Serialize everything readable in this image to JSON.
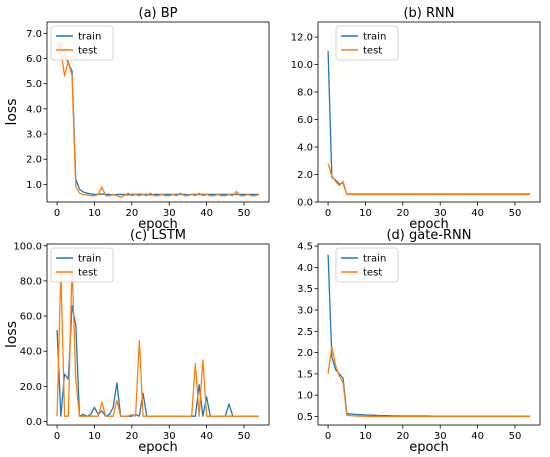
{
  "chart_data": [
    {
      "type": "line",
      "title": "(a)  BP",
      "xlabel": "epoch",
      "ylabel": "loss",
      "xlim": [
        -2.7,
        56.7
      ],
      "ylim": [
        0.3,
        7.45
      ],
      "xticks": [
        0,
        10,
        20,
        30,
        40,
        50
      ],
      "yticks": [
        1.0,
        2.0,
        3.0,
        4.0,
        5.0,
        6.0,
        7.0
      ],
      "ytick_labels": [
        "1.0",
        "2.0",
        "3.0",
        "4.0",
        "5.0",
        "6.0",
        "7.0"
      ],
      "legend": "top-left",
      "series": [
        {
          "name": "train",
          "color": "#1f77b4",
          "values": [
            6.4,
            6.6,
            6.2,
            5.8,
            5.5,
            1.2,
            0.8,
            0.7,
            0.65,
            0.62,
            0.6,
            0.6,
            0.62,
            0.6,
            0.6,
            0.58,
            0.6,
            0.6,
            0.6,
            0.58,
            0.6,
            0.6,
            0.6,
            0.6,
            0.6,
            0.58,
            0.6,
            0.6,
            0.6,
            0.6,
            0.6,
            0.6,
            0.6,
            0.6,
            0.6,
            0.58,
            0.6,
            0.6,
            0.6,
            0.6,
            0.6,
            0.6,
            0.6,
            0.6,
            0.6,
            0.6,
            0.6,
            0.6,
            0.6,
            0.6,
            0.6,
            0.6,
            0.6,
            0.6,
            0.6
          ]
        },
        {
          "name": "test",
          "color": "#ff7f0e",
          "values": [
            6.7,
            6.4,
            5.3,
            5.9,
            5.3,
            0.9,
            0.65,
            0.6,
            0.58,
            0.55,
            0.55,
            0.6,
            0.9,
            0.55,
            0.55,
            0.6,
            0.55,
            0.5,
            0.55,
            0.65,
            0.55,
            0.6,
            0.55,
            0.6,
            0.55,
            0.65,
            0.55,
            0.55,
            0.6,
            0.55,
            0.55,
            0.6,
            0.55,
            0.65,
            0.55,
            0.55,
            0.6,
            0.55,
            0.65,
            0.55,
            0.6,
            0.55,
            0.55,
            0.6,
            0.55,
            0.55,
            0.6,
            0.55,
            0.72,
            0.55,
            0.55,
            0.6,
            0.55,
            0.55,
            0.6
          ]
        }
      ]
    },
    {
      "type": "line",
      "title": "(b)  RNN",
      "xlabel": "epoch",
      "ylabel": "",
      "xlim": [
        -2.7,
        56.7
      ],
      "ylim": [
        0.0,
        13.1
      ],
      "xticks": [
        0,
        10,
        20,
        30,
        40,
        50
      ],
      "yticks": [
        0.0,
        2.0,
        4.0,
        6.0,
        8.0,
        10.0,
        12.0
      ],
      "ytick_labels": [
        "0.0",
        "2.0",
        "4.0",
        "6.0",
        "8.0",
        "10.0",
        "12.0"
      ],
      "legend": "top-center",
      "series": [
        {
          "name": "train",
          "color": "#1f77b4",
          "values": [
            11.0,
            1.8,
            1.6,
            1.3,
            1.4,
            0.58,
            0.58,
            0.58,
            0.58,
            0.58,
            0.58,
            0.58,
            0.58,
            0.58,
            0.58,
            0.58,
            0.58,
            0.58,
            0.58,
            0.58,
            0.58,
            0.58,
            0.58,
            0.58,
            0.58,
            0.58,
            0.58,
            0.58,
            0.58,
            0.58,
            0.58,
            0.58,
            0.58,
            0.58,
            0.58,
            0.58,
            0.58,
            0.58,
            0.58,
            0.58,
            0.58,
            0.58,
            0.58,
            0.58,
            0.58,
            0.58,
            0.58,
            0.58,
            0.58,
            0.58,
            0.58,
            0.58,
            0.58,
            0.58,
            0.58
          ]
        },
        {
          "name": "test",
          "color": "#ff7f0e",
          "values": [
            2.8,
            1.9,
            1.5,
            1.2,
            1.5,
            0.55,
            0.55,
            0.55,
            0.55,
            0.55,
            0.55,
            0.55,
            0.55,
            0.55,
            0.55,
            0.55,
            0.55,
            0.55,
            0.55,
            0.55,
            0.55,
            0.55,
            0.55,
            0.55,
            0.55,
            0.55,
            0.55,
            0.55,
            0.55,
            0.55,
            0.55,
            0.55,
            0.55,
            0.55,
            0.55,
            0.55,
            0.55,
            0.55,
            0.55,
            0.55,
            0.55,
            0.55,
            0.55,
            0.55,
            0.55,
            0.55,
            0.55,
            0.55,
            0.55,
            0.55,
            0.55,
            0.55,
            0.55,
            0.55,
            0.55
          ]
        }
      ]
    },
    {
      "type": "line",
      "title": "(c)  LSTM",
      "xlabel": "epoch",
      "ylabel": "loss",
      "xlim": [
        -2.7,
        56.7
      ],
      "ylim": [
        -2.0,
        101.0
      ],
      "xticks": [
        0,
        10,
        20,
        30,
        40,
        50
      ],
      "yticks": [
        0.0,
        20.0,
        40.0,
        60.0,
        80.0,
        100.0
      ],
      "ytick_labels": [
        "0.0",
        "20.0",
        "40.0",
        "60.0",
        "80.0",
        "100.0"
      ],
      "legend": "top-left",
      "series": [
        {
          "name": "train",
          "color": "#1f77b4",
          "values": [
            52,
            3,
            27,
            24,
            66,
            55,
            3,
            4,
            3,
            4,
            8,
            4,
            6,
            3,
            4,
            8,
            22,
            3,
            3,
            3,
            3,
            4,
            3,
            16,
            3,
            3,
            3,
            3,
            3,
            3,
            3,
            3,
            3,
            3,
            3,
            3,
            3,
            3,
            21,
            3,
            14,
            3,
            3,
            3,
            3,
            3,
            10,
            3,
            3,
            3,
            3,
            3,
            3,
            3,
            3
          ]
        },
        {
          "name": "test",
          "color": "#ff7f0e",
          "values": [
            3,
            86,
            3,
            3,
            89,
            24,
            3,
            3,
            3,
            3,
            3,
            3,
            11,
            3,
            3,
            3,
            12,
            3,
            3,
            3,
            4,
            3,
            46,
            3,
            3,
            3,
            3,
            3,
            3,
            3,
            3,
            3,
            3,
            3,
            3,
            3,
            3,
            33,
            3,
            35,
            3,
            3,
            3,
            3,
            3,
            3,
            3,
            3,
            3,
            3,
            3,
            3,
            3,
            3,
            3
          ]
        }
      ]
    },
    {
      "type": "line",
      "title": "(d)  gate-RNN",
      "xlabel": "epoch",
      "ylabel": "",
      "xlim": [
        -2.7,
        56.7
      ],
      "ylim": [
        0.3,
        4.55
      ],
      "xticks": [
        0,
        10,
        20,
        30,
        40,
        50
      ],
      "yticks": [
        0.5,
        1.0,
        1.5,
        2.0,
        2.5,
        3.0,
        3.5,
        4.0,
        4.5
      ],
      "ytick_labels": [
        "0.5",
        "1.0",
        "1.5",
        "2.0",
        "2.5",
        "3.0",
        "3.5",
        "4.0",
        "4.5"
      ],
      "legend": "top-center",
      "series": [
        {
          "name": "train",
          "color": "#1f77b4",
          "values": [
            4.3,
            1.9,
            1.6,
            1.5,
            1.4,
            0.57,
            0.56,
            0.55,
            0.545,
            0.54,
            0.535,
            0.53,
            0.53,
            0.525,
            0.52,
            0.52,
            0.52,
            0.515,
            0.515,
            0.515,
            0.51,
            0.51,
            0.51,
            0.51,
            0.51,
            0.51,
            0.51,
            0.51,
            0.505,
            0.505,
            0.505,
            0.505,
            0.505,
            0.505,
            0.505,
            0.505,
            0.505,
            0.505,
            0.505,
            0.505,
            0.505,
            0.505,
            0.505,
            0.505,
            0.505,
            0.505,
            0.505,
            0.505,
            0.505,
            0.505,
            0.505,
            0.505,
            0.505,
            0.505,
            0.505
          ]
        },
        {
          "name": "test",
          "color": "#ff7f0e",
          "values": [
            1.5,
            2.15,
            1.7,
            1.45,
            1.3,
            0.53,
            0.52,
            0.515,
            0.51,
            0.505,
            0.505,
            0.5,
            0.5,
            0.5,
            0.5,
            0.5,
            0.5,
            0.5,
            0.5,
            0.5,
            0.5,
            0.5,
            0.5,
            0.5,
            0.5,
            0.5,
            0.5,
            0.5,
            0.5,
            0.5,
            0.5,
            0.5,
            0.5,
            0.5,
            0.5,
            0.5,
            0.5,
            0.5,
            0.5,
            0.5,
            0.5,
            0.5,
            0.5,
            0.5,
            0.5,
            0.5,
            0.5,
            0.5,
            0.5,
            0.5,
            0.5,
            0.5,
            0.5,
            0.5,
            0.5
          ]
        }
      ]
    }
  ]
}
